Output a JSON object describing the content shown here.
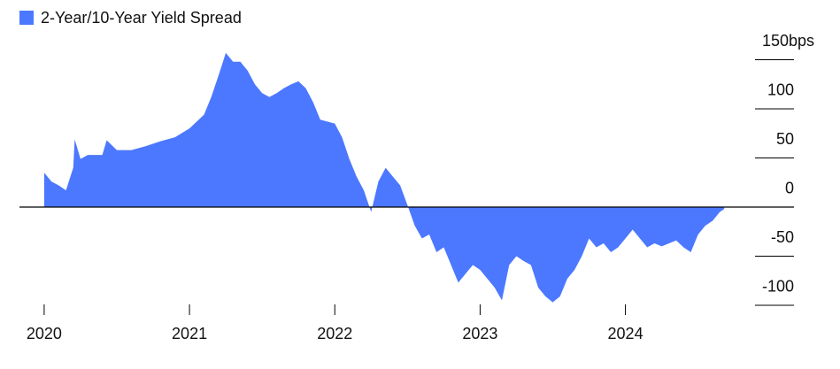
{
  "chart_data": {
    "type": "area",
    "series": [
      {
        "name": "2-Year/10-Year Yield Spread",
        "color": "#4c78ff",
        "x": [
          2020.0,
          2020.05,
          2020.1,
          2020.15,
          2020.2,
          2020.21,
          2020.25,
          2020.3,
          2020.4,
          2020.43,
          2020.5,
          2020.6,
          2020.7,
          2020.8,
          2020.9,
          2021.0,
          2021.1,
          2021.15,
          2021.2,
          2021.25,
          2021.3,
          2021.35,
          2021.4,
          2021.45,
          2021.5,
          2021.55,
          2021.6,
          2021.65,
          2021.7,
          2021.75,
          2021.8,
          2021.85,
          2021.9,
          2022.0,
          2022.05,
          2022.1,
          2022.15,
          2022.2,
          2022.25,
          2022.3,
          2022.35,
          2022.4,
          2022.45,
          2022.5,
          2022.55,
          2022.6,
          2022.65,
          2022.7,
          2022.75,
          2022.8,
          2022.85,
          2022.9,
          2022.95,
          2023.0,
          2023.05,
          2023.1,
          2023.15,
          2023.2,
          2023.25,
          2023.3,
          2023.35,
          2023.4,
          2023.45,
          2023.5,
          2023.55,
          2023.6,
          2023.65,
          2023.7,
          2023.75,
          2023.8,
          2023.85,
          2023.9,
          2023.95,
          2024.0,
          2024.05,
          2024.1,
          2024.15,
          2024.2,
          2024.25,
          2024.3,
          2024.35,
          2024.4,
          2024.45,
          2024.5,
          2024.55,
          2024.6,
          2024.65,
          2024.68
        ],
        "values": [
          35,
          26,
          22,
          17,
          40,
          69,
          49,
          53,
          53,
          68,
          58,
          58,
          62,
          67,
          71,
          80,
          94,
          112,
          134,
          157,
          148,
          148,
          139,
          125,
          116,
          112,
          116,
          121,
          125,
          128,
          121,
          107,
          89,
          85,
          71,
          49,
          31,
          17,
          -5,
          26,
          40,
          31,
          22,
          2,
          -19,
          -32,
          -28,
          -46,
          -41,
          -59,
          -77,
          -68,
          -59,
          -64,
          -73,
          -82,
          -95,
          -59,
          -50,
          -55,
          -59,
          -82,
          -91,
          -97,
          -91,
          -73,
          -64,
          -50,
          -32,
          -41,
          -37,
          -46,
          -41,
          -32,
          -23,
          -32,
          -41,
          -37,
          -40,
          -37,
          -34,
          -41,
          -46,
          -28,
          -19,
          -14,
          -5,
          -2
        ]
      }
    ],
    "xlim": [
      2019.83,
      2025.16
    ],
    "xticks": [
      2020,
      2021,
      2022,
      2023,
      2024
    ],
    "ylim": [
      -105,
      175
    ],
    "yticks": [
      {
        "value": 150,
        "label": "150bps"
      },
      100,
      50,
      0,
      -50,
      -100
    ],
    "legend": "top-left"
  }
}
